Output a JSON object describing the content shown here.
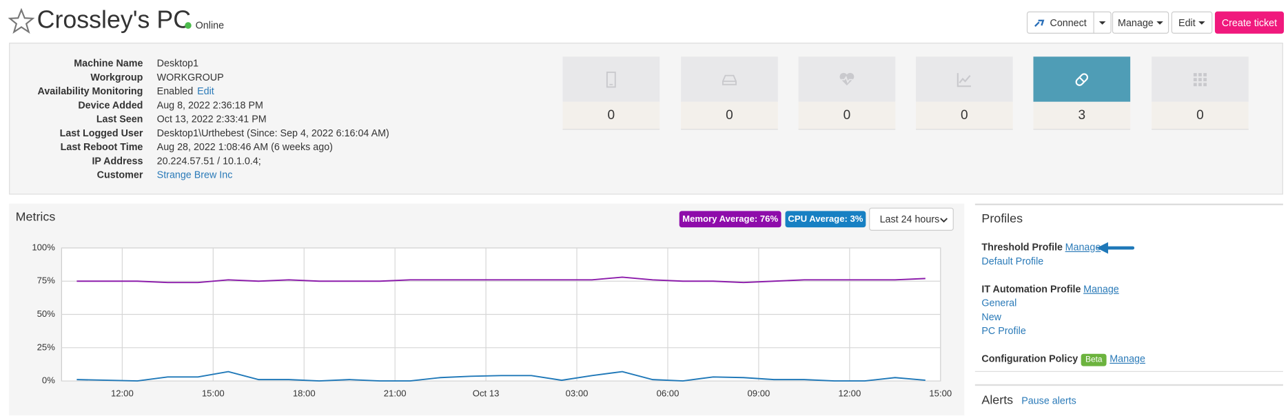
{
  "header": {
    "title": "Crossley's PC",
    "status": "Online",
    "buttons": [
      "Connect",
      "Manage",
      "Edit",
      "Create ticket"
    ]
  },
  "details": [
    {
      "label": "Machine Name",
      "value": "Desktop1"
    },
    {
      "label": "Workgroup",
      "value": "WORKGROUP"
    },
    {
      "label": "Availability Monitoring",
      "value": "Enabled",
      "link": "Edit"
    },
    {
      "label": "Device Added",
      "value": "Aug 8, 2022 2:36:18 PM"
    },
    {
      "label": "Last Seen",
      "value": "Oct 13, 2022 2:33:41 PM"
    },
    {
      "label": "Last Logged User",
      "value": "Desktop1\\Urthebest (Since: Sep 4, 2022 6:16:04 AM)"
    },
    {
      "label": "Last Reboot Time",
      "value": "Aug 28, 2022 1:08:46 AM (6 weeks ago)"
    },
    {
      "label": "IP Address",
      "value": "20.224.57.51 / 10.1.0.4;"
    },
    {
      "label": "Customer",
      "link": "Strange Brew Inc"
    }
  ],
  "tiles": [
    0,
    0,
    0,
    0,
    3,
    0
  ],
  "metrics": {
    "title": "Metrics",
    "badges": [
      "Memory Average: 76%",
      "CPU Average: 3%"
    ],
    "range": "Last 24 hours"
  },
  "chart_data": {
    "type": "line",
    "x": [
      10.5,
      11.5,
      12.5,
      13.5,
      14.5,
      15.5,
      16.5,
      17.5,
      18.5,
      19.5,
      20.5,
      21.5,
      22.5,
      23.5,
      24.5,
      25.5,
      26.5,
      27.5,
      28.5,
      29.5,
      30.5,
      31.5,
      32.5,
      33.5,
      34.5,
      35.5,
      36.5,
      37.5,
      38.5
    ],
    "series": [
      {
        "name": "Memory",
        "color": "#8b1aaa",
        "values": [
          75,
          75,
          75,
          74,
          74,
          76,
          75,
          76,
          75,
          75,
          75,
          76,
          76,
          76,
          76,
          76,
          76,
          76,
          78,
          76,
          75,
          75,
          74,
          75,
          76,
          76,
          76,
          76,
          77
        ]
      },
      {
        "name": "CPU",
        "color": "#1f78b8",
        "values": [
          1,
          0.5,
          0,
          3,
          3,
          7,
          1,
          1,
          0,
          1,
          0,
          0,
          2.5,
          3.5,
          4,
          4,
          0.5,
          4,
          7,
          1,
          0,
          3,
          2.5,
          1,
          1,
          0,
          0,
          2.5,
          0.5
        ]
      }
    ],
    "xlim": [
      10,
      39
    ],
    "xticks": [
      {
        "value": 12,
        "label": "12:00"
      },
      {
        "value": 15,
        "label": "15:00"
      },
      {
        "value": 18,
        "label": "18:00"
      },
      {
        "value": 21,
        "label": "21:00"
      },
      {
        "value": 24,
        "label": "Oct 13"
      },
      {
        "value": 27,
        "label": "03:00"
      },
      {
        "value": 30,
        "label": "06:00"
      },
      {
        "value": 33,
        "label": "09:00"
      },
      {
        "value": 36,
        "label": "12:00"
      },
      {
        "value": 39,
        "label": "15:00"
      }
    ],
    "ylim": [
      0,
      100
    ],
    "yticks": [
      {
        "value": 0,
        "label": "0%"
      },
      {
        "value": 25,
        "label": "25%"
      },
      {
        "value": 50,
        "label": "50%"
      },
      {
        "value": 75,
        "label": "75%"
      },
      {
        "value": 100,
        "label": "100%"
      }
    ],
    "grid": true
  },
  "profiles": {
    "title": "Profiles",
    "sections": [
      {
        "title": "Threshold Profile",
        "action": "Manage",
        "items": [
          "Default Profile"
        ]
      },
      {
        "title": "IT Automation Profile",
        "action": "Manage",
        "items": [
          "General",
          "New",
          "PC Profile"
        ]
      },
      {
        "title": "Configuration Policy",
        "badge": "Beta",
        "action": "Manage",
        "items": []
      }
    ]
  },
  "alerts": {
    "title": "Alerts",
    "action": "Pause alerts"
  }
}
